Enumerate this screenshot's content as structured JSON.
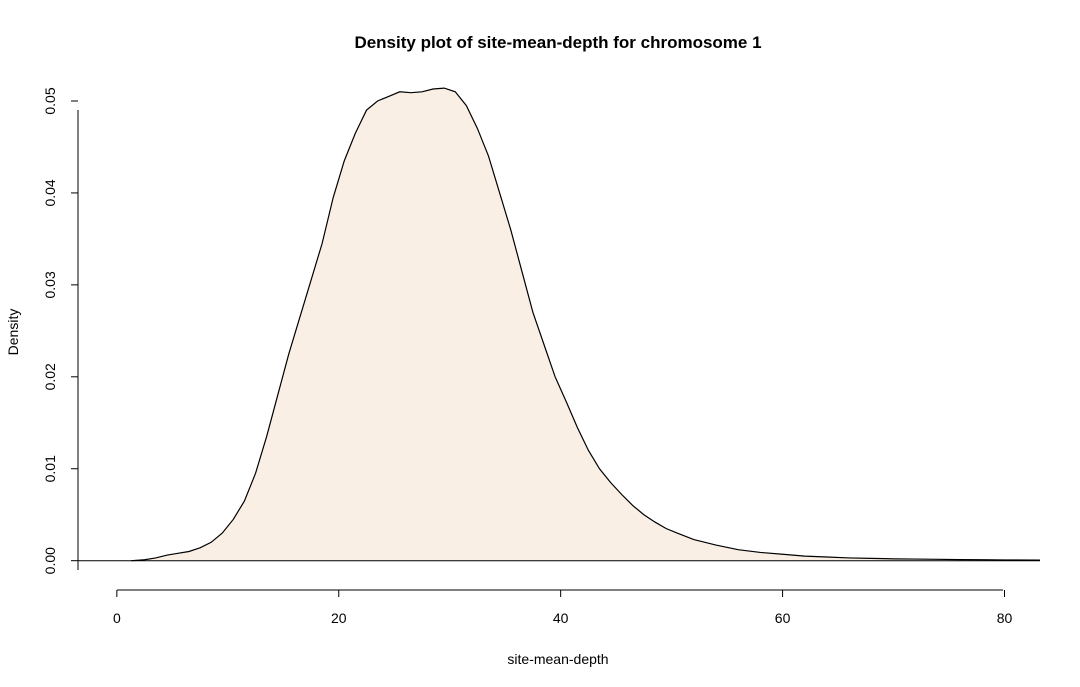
{
  "chart_data": {
    "type": "area",
    "title": "Density plot of site-mean-depth for chromosome 1",
    "xlabel": "site-mean-depth",
    "ylabel": "Density",
    "xlim": [
      -3.5,
      83.2
    ],
    "ylim": [
      -0.0021,
      0.0525
    ],
    "x_ticks": [
      0,
      20,
      40,
      60,
      80
    ],
    "y_ticks": [
      0.0,
      0.01,
      0.02,
      0.03,
      0.04,
      0.05
    ],
    "x_tick_labels": [
      "0",
      "20",
      "40",
      "60",
      "80"
    ],
    "y_tick_labels": [
      "0.00",
      "0.01",
      "0.02",
      "0.03",
      "0.04",
      "0.05"
    ],
    "baseline_from_x": -3.5,
    "fill_color": "#faefe5",
    "line_color": "#000000",
    "grid": false,
    "legend": "none",
    "series": [
      {
        "x": [
          1.3,
          2.5,
          3.5,
          4.5,
          5.5,
          6.5,
          7.5,
          8.5,
          9.5,
          10.5,
          11.5,
          12.5,
          13.5,
          14.5,
          15.5,
          16.5,
          17.5,
          18.5,
          19.5,
          20.5,
          21.5,
          22.5,
          23.5,
          24.5,
          25.5,
          26.5,
          27.5,
          28.5,
          29.5,
          30.5,
          31.5,
          32.5,
          33.5,
          34.5,
          35.5,
          36.5,
          37.5,
          38.5,
          39.5,
          40.5,
          41.5,
          42.5,
          43.5,
          44.5,
          45.5,
          46.5,
          47.5,
          48.5,
          49.5,
          50.5,
          52,
          54,
          56,
          58,
          60,
          62,
          64,
          66,
          68,
          70,
          72,
          74,
          76,
          78,
          80,
          83.2
        ],
        "y": [
          0.0,
          0.0001,
          0.0003,
          0.0006,
          0.0008,
          0.001,
          0.0014,
          0.002,
          0.003,
          0.0045,
          0.0065,
          0.0095,
          0.0135,
          0.018,
          0.0225,
          0.0265,
          0.0305,
          0.0345,
          0.0395,
          0.0435,
          0.0465,
          0.049,
          0.05,
          0.0505,
          0.051,
          0.0509,
          0.051,
          0.0513,
          0.0514,
          0.051,
          0.0495,
          0.047,
          0.044,
          0.04,
          0.036,
          0.0315,
          0.027,
          0.0235,
          0.02,
          0.0173,
          0.0145,
          0.012,
          0.01,
          0.0085,
          0.0072,
          0.006,
          0.005,
          0.0042,
          0.0035,
          0.003,
          0.0023,
          0.0017,
          0.0012,
          0.0009,
          0.0007,
          0.0005,
          0.0004,
          0.0003,
          0.00025,
          0.0002,
          0.00018,
          0.00015,
          0.00012,
          0.0001,
          8e-05,
          6e-05
        ]
      }
    ]
  }
}
